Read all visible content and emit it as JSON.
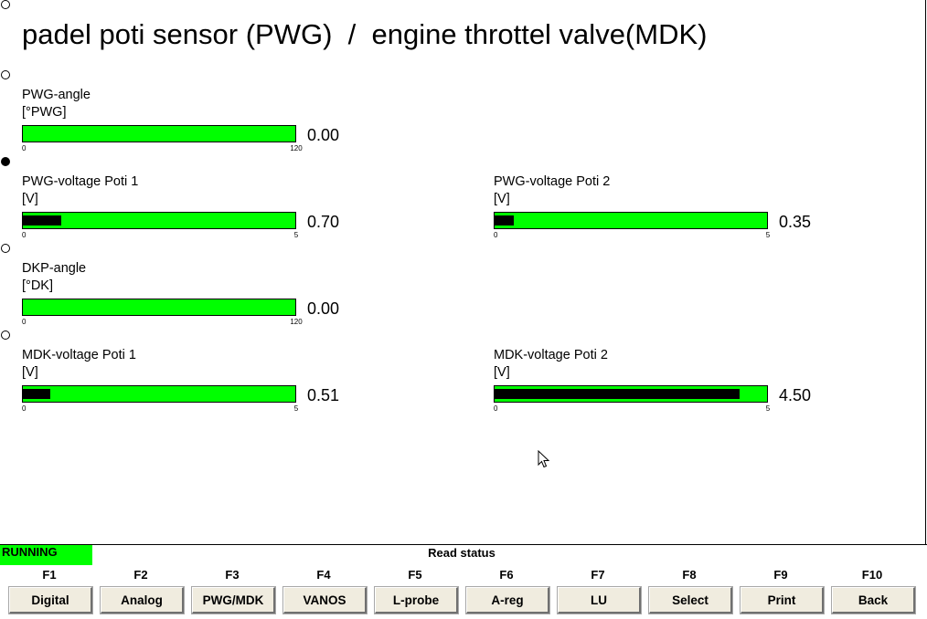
{
  "title": "padel poti sensor (PWG)  /  engine throttel valve(MDK)",
  "gauges": [
    {
      "label": "PWG-angle",
      "unit": "[°PWG]",
      "value": "0.00",
      "min": "0",
      "max": "120",
      "fraction": 0.0
    },
    {
      "label": "PWG-voltage Poti 1",
      "unit": "[V]",
      "value": "0.70",
      "min": "0",
      "max": "5",
      "fraction": 0.14
    },
    {
      "label": "PWG-voltage Poti 2",
      "unit": "[V]",
      "value": "0.35",
      "min": "0",
      "max": "5",
      "fraction": 0.07
    },
    {
      "label": "DKP-angle",
      "unit": "[°DK]",
      "value": "0.00",
      "min": "0",
      "max": "120",
      "fraction": 0.0
    },
    {
      "label": "MDK-voltage Poti 1",
      "unit": "[V]",
      "value": "0.51",
      "min": "0",
      "max": "5",
      "fraction": 0.102
    },
    {
      "label": "MDK-voltage Poti 2",
      "unit": "[V]",
      "value": "4.50",
      "min": "0",
      "max": "5",
      "fraction": 0.9
    }
  ],
  "status": {
    "running": "RUNNING",
    "text": "Read status"
  },
  "fkeys": [
    {
      "key": "F1",
      "label": "Digital"
    },
    {
      "key": "F2",
      "label": "Analog"
    },
    {
      "key": "F3",
      "label": "PWG/MDK"
    },
    {
      "key": "F4",
      "label": "VANOS"
    },
    {
      "key": "F5",
      "label": "L-probe"
    },
    {
      "key": "F6",
      "label": "A-reg"
    },
    {
      "key": "F7",
      "label": "LU"
    },
    {
      "key": "F8",
      "label": "Select"
    },
    {
      "key": "F9",
      "label": "Print"
    },
    {
      "key": "F10",
      "label": "Back"
    }
  ],
  "colors": {
    "bar": "#00ff00",
    "fill": "#000000",
    "running": "#00ff00"
  }
}
